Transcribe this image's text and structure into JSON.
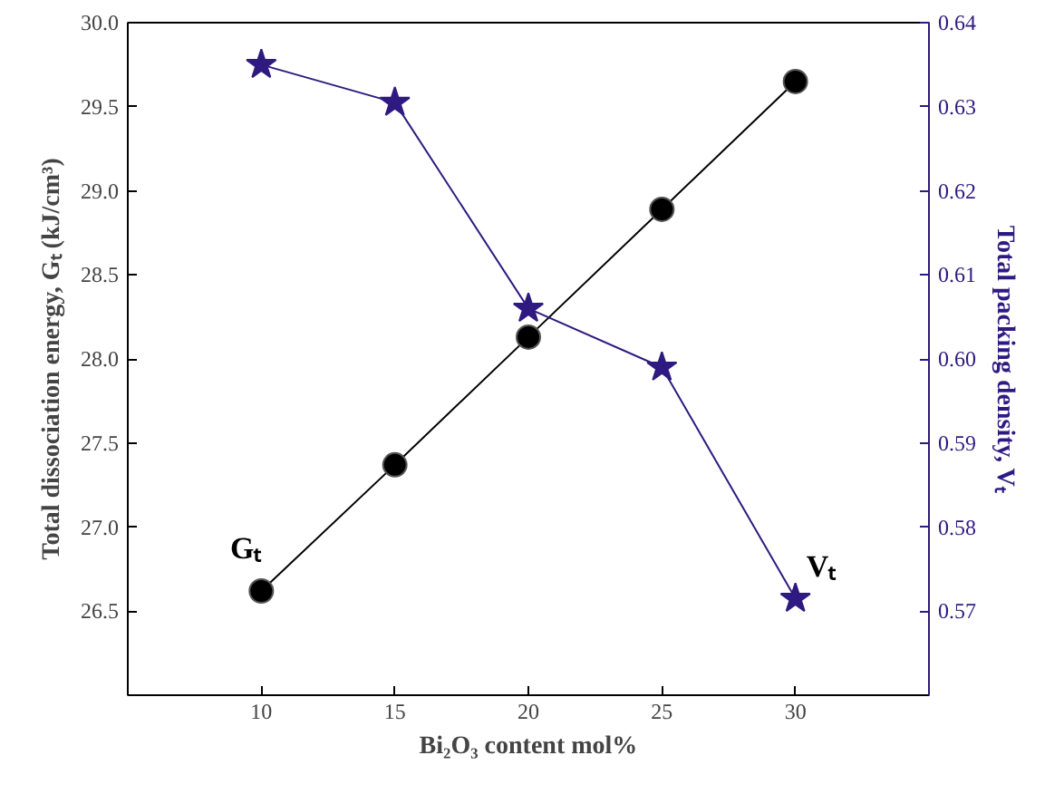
{
  "chart_data": {
    "type": "line",
    "xlabel": "Bi₂O₃ content mol%",
    "ylabel": "Total dissociation energy, Gₜ (kJ/cm³)",
    "y2label": "Total packing density, Vₜ",
    "x": [
      10,
      15,
      20,
      25,
      30
    ],
    "series": [
      {
        "color": "#000000",
        "marker": "circle",
        "values": [
          26.62,
          27.37,
          28.13,
          28.89,
          29.65
        ]
      },
      {
        "color": "#2e1a80",
        "marker": "star",
        "axis": "y2",
        "values": [
          0.635,
          0.6305,
          0.606,
          0.599,
          0.5715
        ]
      }
    ],
    "xlim": [
      5,
      35
    ],
    "xticks": [
      10,
      15,
      20,
      25,
      30
    ],
    "ylim": [
      26.0,
      30.0
    ],
    "yticks": [
      {
        "value": 26.5,
        "label": "26.5"
      },
      {
        "value": 27,
        "label": "27.0"
      },
      {
        "value": 27.5,
        "label": "27.5"
      },
      {
        "value": 28,
        "label": "28.0"
      },
      {
        "value": 28.5,
        "label": "28.5"
      },
      {
        "value": 29,
        "label": "29.0"
      },
      {
        "value": 29.5,
        "label": "29.5"
      },
      {
        "value": 30,
        "label": "30.0"
      }
    ],
    "y2lim": [
      0.56,
      0.64
    ],
    "y2ticks": [
      0.57,
      0.58,
      0.59,
      {
        "value": 0.6,
        "label": "0.60"
      },
      0.61,
      0.62,
      0.63,
      0.64
    ],
    "annotations": [
      "Gₜ",
      "Vₜ"
    ],
    "grid": false
  }
}
